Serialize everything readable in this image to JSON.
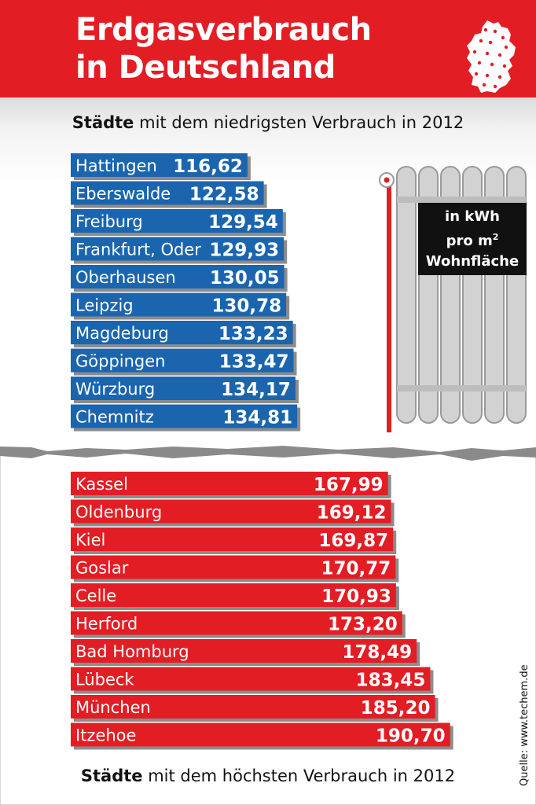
{
  "header": {
    "title_line1": "Erdgasverbrauch",
    "title_line2": "in Deutschland",
    "banner_color": "#e31d24",
    "icon": "germany-map-icon"
  },
  "subtitles": {
    "top_strong": "Städte",
    "top_rest": " mit dem niedrigsten Verbrauch in 2012",
    "bottom_strong": "Städte",
    "bottom_rest": " mit dem höchsten Verbrauch in 2012"
  },
  "unit_box": {
    "line1": "in kWh",
    "line2": "pro m",
    "line2_sup": "2",
    "line3": "Wohnfläche"
  },
  "source": "Quelle: www.techem.de",
  "chart_data": [
    {
      "type": "bar",
      "orientation": "horizontal",
      "color": "#1b65ae",
      "categories": [
        "Hattingen",
        "Eberswalde",
        "Freiburg",
        "Frankfurt, Oder",
        "Oberhausen",
        "Leipzig",
        "Magdeburg",
        "Göppingen",
        "Würzburg",
        "Chemnitz"
      ],
      "values": [
        116.62,
        122.58,
        129.54,
        129.93,
        130.05,
        130.78,
        133.23,
        133.47,
        134.17,
        134.81
      ],
      "value_labels": [
        "116,62",
        "122,58",
        "129,54",
        "129,93",
        "130,05",
        "130,78",
        "133,23",
        "133,47",
        "134,17",
        "134,81"
      ]
    },
    {
      "type": "bar",
      "orientation": "horizontal",
      "color": "#e31d24",
      "categories": [
        "Kassel",
        "Oldenburg",
        "Kiel",
        "Goslar",
        "Celle",
        "Herford",
        "Bad Homburg",
        "Lübeck",
        "München",
        "Itzehoe"
      ],
      "values": [
        167.99,
        169.12,
        169.87,
        170.77,
        170.93,
        173.2,
        178.49,
        183.45,
        185.2,
        190.7
      ],
      "value_labels": [
        "167,99",
        "169,12",
        "169,87",
        "170,77",
        "170,93",
        "173,20",
        "178,49",
        "183,45",
        "185,20",
        "190,70"
      ]
    }
  ]
}
